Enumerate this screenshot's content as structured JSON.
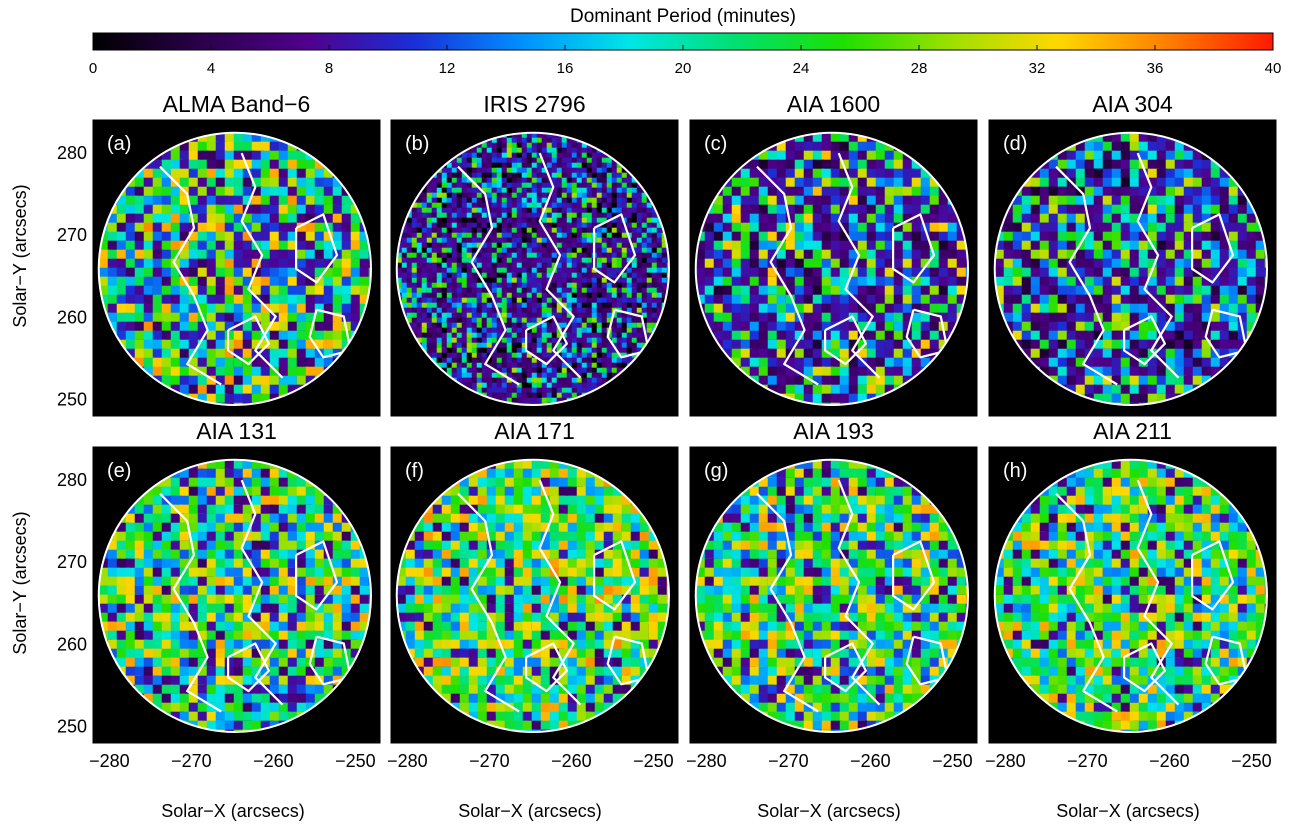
{
  "chart_data": {
    "type": "heatmap",
    "colorbar": {
      "title": "Dominant Period (minutes)",
      "range": [
        0,
        40
      ],
      "ticks": [
        "0",
        "4",
        "8",
        "12",
        "16",
        "20",
        "24",
        "28",
        "32",
        "36",
        "40"
      ],
      "colormap": [
        "#000000",
        "#2a004a",
        "#50008c",
        "#1a2fd8",
        "#0090ff",
        "#00e6e6",
        "#00e070",
        "#1ee000",
        "#9de000",
        "#ffd800",
        "#ff8000",
        "#ff1a00"
      ]
    },
    "xlabel": "Solar−X (arcsecs)",
    "ylabel": "Solar−Y (arcsecs)",
    "xlim": [
      -282,
      -247
    ],
    "ylim": [
      248,
      284
    ],
    "xticks": [
      "−280",
      "−270",
      "−260",
      "−250"
    ],
    "yticks": [
      "250",
      "260",
      "270",
      "280"
    ],
    "field_of_view": {
      "center_x": -264.7,
      "center_y": 265.9,
      "radius_arcsec": 16.6
    },
    "panels": [
      {
        "label": "(a)",
        "title": "ALMA Band−6"
      },
      {
        "label": "(b)",
        "title": "IRIS 2796"
      },
      {
        "label": "(c)",
        "title": "AIA 1600"
      },
      {
        "label": "(d)",
        "title": "AIA 304"
      },
      {
        "label": "(e)",
        "title": "AIA 131"
      },
      {
        "label": "(f)",
        "title": "AIA 171"
      },
      {
        "label": "(g)",
        "title": "AIA 193"
      },
      {
        "label": "(h)",
        "title": "AIA 211"
      }
    ]
  }
}
